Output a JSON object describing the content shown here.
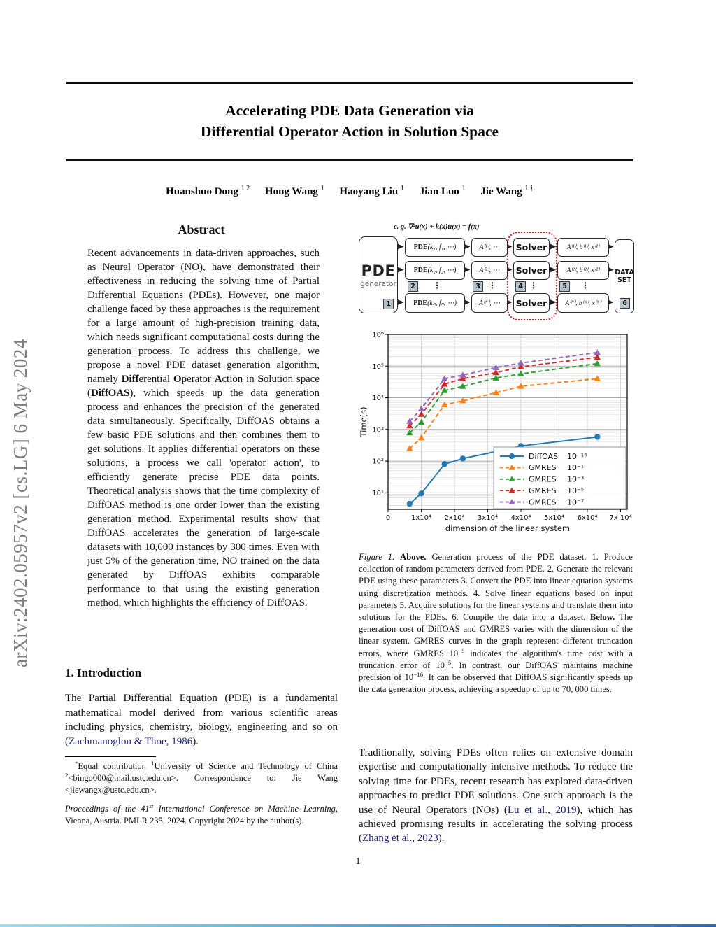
{
  "sidebar": {
    "text": "arXiv:2402.05957v2  [cs.LG]  6 May 2024"
  },
  "header": {
    "title_line1": "Accelerating PDE Data Generation via",
    "title_line2": "Differential Operator Action in Solution Space",
    "authors": [
      {
        "name": "Huanshuo Dong",
        "sup": "1 2"
      },
      {
        "name": "Hong Wang",
        "sup": "1"
      },
      {
        "name": "Haoyang Liu",
        "sup": "1"
      },
      {
        "name": "Jian Luo",
        "sup": "1"
      },
      {
        "name": "Jie Wang",
        "sup": "1 †"
      }
    ]
  },
  "abstract": {
    "heading": "Abstract",
    "segments": [
      {
        "t": "Recent advancements in data-driven approaches, such as Neural Operator (NO), have demonstrated their effectiveness in reducing the solving time of Partial Differential Equations (PDEs). However, one major challenge faced by these approaches is the requirement for a large amount of high-precision training data, which needs significant computational costs during the generation process.  To address this challenge, we propose a novel PDE dataset generation algorithm, namely "
      },
      {
        "t": "Diff",
        "s": "bu"
      },
      {
        "t": "erential "
      },
      {
        "t": "O",
        "s": "bu"
      },
      {
        "t": "perator "
      },
      {
        "t": "A",
        "s": "bu"
      },
      {
        "t": "ction in "
      },
      {
        "t": "S",
        "s": "bu"
      },
      {
        "t": "olution space ("
      },
      {
        "t": "DiffOAS",
        "s": "b"
      },
      {
        "t": "), which speeds up the data generation process and enhances the precision of the generated data simultaneously. Specifically, DiffOAS obtains a few basic PDE solutions and then combines them to get solutions. It applies differential operators on these solutions, a process we call 'operator action', to efficiently generate precise PDE data points.  Theoretical analysis shows that the time complexity of DiffOAS method is one order lower than the existing generation method.  Experimental results show that DiffOAS accelerates the generation of large-scale datasets with 10,000 instances by 300 times. Even with just 5% of the generation time, NO trained on the data generated by DiffOAS exhibits comparable performance to that using the existing generation method, which highlights the efficiency of DiffOAS."
      }
    ]
  },
  "introduction": {
    "heading": "1. Introduction",
    "segments": [
      {
        "t": "The Partial Differential Equation (PDE) is a fundamental mathematical model derived from various scientific areas including physics, chemistry, biology, engineering and so on ("
      },
      {
        "t": "Zachmanoglou & Thoe",
        "s": "link"
      },
      {
        "t": ", "
      },
      {
        "t": "1986",
        "s": "link"
      },
      {
        "t": ")."
      }
    ]
  },
  "footnote": {
    "segments": [
      {
        "t": "*",
        "s": "sup"
      },
      {
        "t": "Equal contribution  "
      },
      {
        "t": "1",
        "s": "sup"
      },
      {
        "t": "University of Science and Technology of China "
      },
      {
        "t": "2",
        "s": "sup"
      },
      {
        "t": "<bingo000@mail.ustc.edu.cn>. Correspondence to: Jie Wang <jiewangx@ustc.edu.cn>."
      }
    ]
  },
  "proceedings": {
    "segments": [
      {
        "t": "Proceedings of the 41",
        "s": "i"
      },
      {
        "t": "st",
        "s": "isup"
      },
      {
        "t": " International Conference on Machine Learning",
        "s": "i"
      },
      {
        "t": ", Vienna, Austria. PMLR 235, 2024. Copyright 2024 by the author(s)."
      }
    ]
  },
  "diagram": {
    "formula": "e. g. ∇²u(x) + k(x)u(x) = f(x)",
    "generator_title": "PDE",
    "generator_subtitle": "generator",
    "rows": [
      {
        "pde_bold": "PDE",
        "pde_args": "(k₁, f₁, ⋯)",
        "a": "A⁽¹⁾, ⋯",
        "solver": "Solver",
        "out": "A⁽¹⁾, b⁽¹⁾, x⁽¹⁾"
      },
      {
        "pde_bold": "PDE",
        "pde_args": "(k₂, f₂, ⋯)",
        "a": "A⁽²⁾, ⋯",
        "solver": "Solver",
        "out": "A⁽²⁾, b⁽²⁾, x⁽²⁾"
      },
      {
        "pde_bold": "PDE",
        "pde_args": "(kₙ, fₙ, ⋯)",
        "a": "A⁽ᴺ⁾, ⋯",
        "solver": "Solver",
        "out": "A⁽ᴺ⁾, b⁽ᴺ⁾, x⁽ᴺ⁾"
      }
    ],
    "badges": [
      "1",
      "2",
      "3",
      "4",
      "5",
      "6"
    ],
    "dots": "⋮",
    "dataset_line1": "DATA",
    "dataset_line2": "SET"
  },
  "chart_data": {
    "type": "line",
    "title": "",
    "xlabel": "dimension of the linear system",
    "ylabel": "Time(s)",
    "x_scale": "linear",
    "y_scale": "log",
    "xlim": [
      0,
      72000
    ],
    "ylim": [
      3,
      1000000
    ],
    "grid": true,
    "legend_position": "lower right",
    "x_ticks": [
      {
        "v": 0,
        "l": "0"
      },
      {
        "v": 10000,
        "l": "1x10⁴"
      },
      {
        "v": 20000,
        "l": "2x10⁴"
      },
      {
        "v": 30000,
        "l": "3x10⁴"
      },
      {
        "v": 40000,
        "l": "4x10⁴"
      },
      {
        "v": 50000,
        "l": "5x10⁴"
      },
      {
        "v": 60000,
        "l": "6x10⁴"
      },
      {
        "v": 70000,
        "l": "7x 10⁴"
      }
    ],
    "y_ticks": [
      {
        "v": 10,
        "l": "10¹"
      },
      {
        "v": 100,
        "l": "10²"
      },
      {
        "v": 1000,
        "l": "10³"
      },
      {
        "v": 10000,
        "l": "10⁴"
      },
      {
        "v": 100000,
        "l": "10⁵"
      },
      {
        "v": 1000000,
        "l": "10⁶"
      }
    ],
    "x": [
      6500,
      10000,
      17000,
      22500,
      32500,
      40000,
      63000
    ],
    "series": [
      {
        "name": "DiffOAS",
        "tol": "10⁻¹⁶",
        "color": "#1f77b4",
        "marker": "circle",
        "dash": false,
        "values": [
          4.5,
          9.5,
          80,
          120,
          200,
          300,
          580
        ]
      },
      {
        "name": "GMRES",
        "tol": "10⁻¹",
        "color": "#ff7f0e",
        "marker": "triangle",
        "dash": true,
        "values": [
          250,
          550,
          6000,
          8000,
          14500,
          23000,
          40000
        ]
      },
      {
        "name": "GMRES",
        "tol": "10⁻³",
        "color": "#2ca02c",
        "marker": "triangle",
        "dash": true,
        "values": [
          780,
          1700,
          17000,
          23000,
          42000,
          57000,
          120000
        ]
      },
      {
        "name": "GMRES",
        "tol": "10⁻⁵",
        "color": "#d62728",
        "marker": "triangle",
        "dash": true,
        "values": [
          1300,
          3000,
          27000,
          40000,
          62000,
          95000,
          190000
        ]
      },
      {
        "name": "GMRES",
        "tol": "10⁻⁷",
        "color": "#9467bd",
        "marker": "triangle",
        "dash": true,
        "values": [
          1800,
          4500,
          40000,
          52000,
          90000,
          125000,
          270000
        ]
      }
    ]
  },
  "caption": {
    "segments": [
      {
        "t": "Figure 1.",
        "s": "i"
      },
      {
        "t": "  "
      },
      {
        "t": "Above.",
        "s": "b"
      },
      {
        "t": " Generation process of the PDE dataset. 1. Produce collection of random parameters derived from PDE. 2. Generate the relevant PDE using these parameters 3. Convert the PDE into linear equation systems using discretization methods. 4. Solve linear equations based on input parameters 5. Acquire solutions for the linear systems and translate them into solutions for the PDEs. 6. Compile the data into a dataset. "
      },
      {
        "t": "Below.",
        "s": "b"
      },
      {
        "t": " The generation cost of DiffOAS and GMRES varies with the dimension of the linear system. GMRES curves in the graph represent different truncation errors, where GMRES 10"
      },
      {
        "t": "−5",
        "s": "sup"
      },
      {
        "t": " indicates the algorithm's time cost with a truncation error of 10"
      },
      {
        "t": "−5",
        "s": "sup"
      },
      {
        "t": ". In contrast, our DiffOAS maintains machine precision of 10"
      },
      {
        "t": "−16",
        "s": "sup"
      },
      {
        "t": ". It can be observed that DiffOAS significantly speeds up the data generation process, achieving a speedup of up to 70, 000 times."
      }
    ]
  },
  "body_right": {
    "segments": [
      {
        "t": "Traditionally, solving PDEs often relies on extensive domain expertise and computationally intensive methods. To reduce the solving time for PDEs, recent research has explored data-driven approaches to predict PDE solutions. One such approach is the use of Neural Operators (NOs) ("
      },
      {
        "t": "Lu et al.",
        "s": "link"
      },
      {
        "t": ", "
      },
      {
        "t": "2019",
        "s": "link"
      },
      {
        "t": "), which has achieved promising results in accelerating the solving process ("
      },
      {
        "t": "Zhang et al.",
        "s": "link"
      },
      {
        "t": ", "
      },
      {
        "t": "2023",
        "s": "link"
      },
      {
        "t": ")."
      }
    ]
  },
  "footer": {
    "page_number": "1"
  }
}
